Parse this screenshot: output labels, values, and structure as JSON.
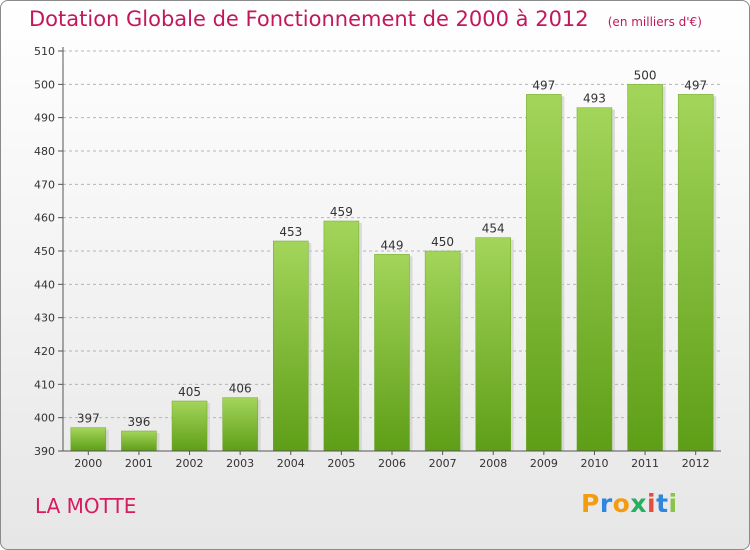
{
  "header": {
    "title": "Dotation Globale de Fonctionnement de 2000 à 2012",
    "subtitle": "(en milliers d'€)"
  },
  "footer": {
    "commune": "LA MOTTE",
    "logo": [
      "P",
      "r",
      "o",
      "x",
      "i",
      "t",
      "i"
    ]
  },
  "colors": {
    "title": "#c2185b",
    "bar_light": "#a3d55a",
    "bar_dark": "#5e9e17",
    "logo_letters": [
      "#f39c12",
      "#2e86de",
      "#f39c12",
      "#27ae60",
      "#e74c3c",
      "#2e86de",
      "#8bc34a"
    ]
  },
  "chart_data": {
    "type": "bar",
    "title": "Dotation Globale de Fonctionnement de 2000 à 2012",
    "subtitle": "(en milliers d'€)",
    "categories": [
      "2000",
      "2001",
      "2002",
      "2003",
      "2004",
      "2005",
      "2006",
      "2007",
      "2008",
      "2009",
      "2010",
      "2011",
      "2012"
    ],
    "values": [
      397,
      396,
      405,
      406,
      453,
      459,
      449,
      450,
      454,
      497,
      493,
      500,
      497
    ],
    "data_labels": [
      "397",
      "396",
      "405",
      "406",
      "453",
      "459",
      "449",
      "450",
      "454",
      "497",
      "493",
      "500",
      "497"
    ],
    "ylim": [
      390,
      510
    ],
    "yticks": [
      "390",
      "400",
      "410",
      "420",
      "430",
      "440",
      "450",
      "460",
      "470",
      "480",
      "490",
      "500",
      "510"
    ],
    "grid": "horizontal dashed",
    "legend": "none"
  }
}
